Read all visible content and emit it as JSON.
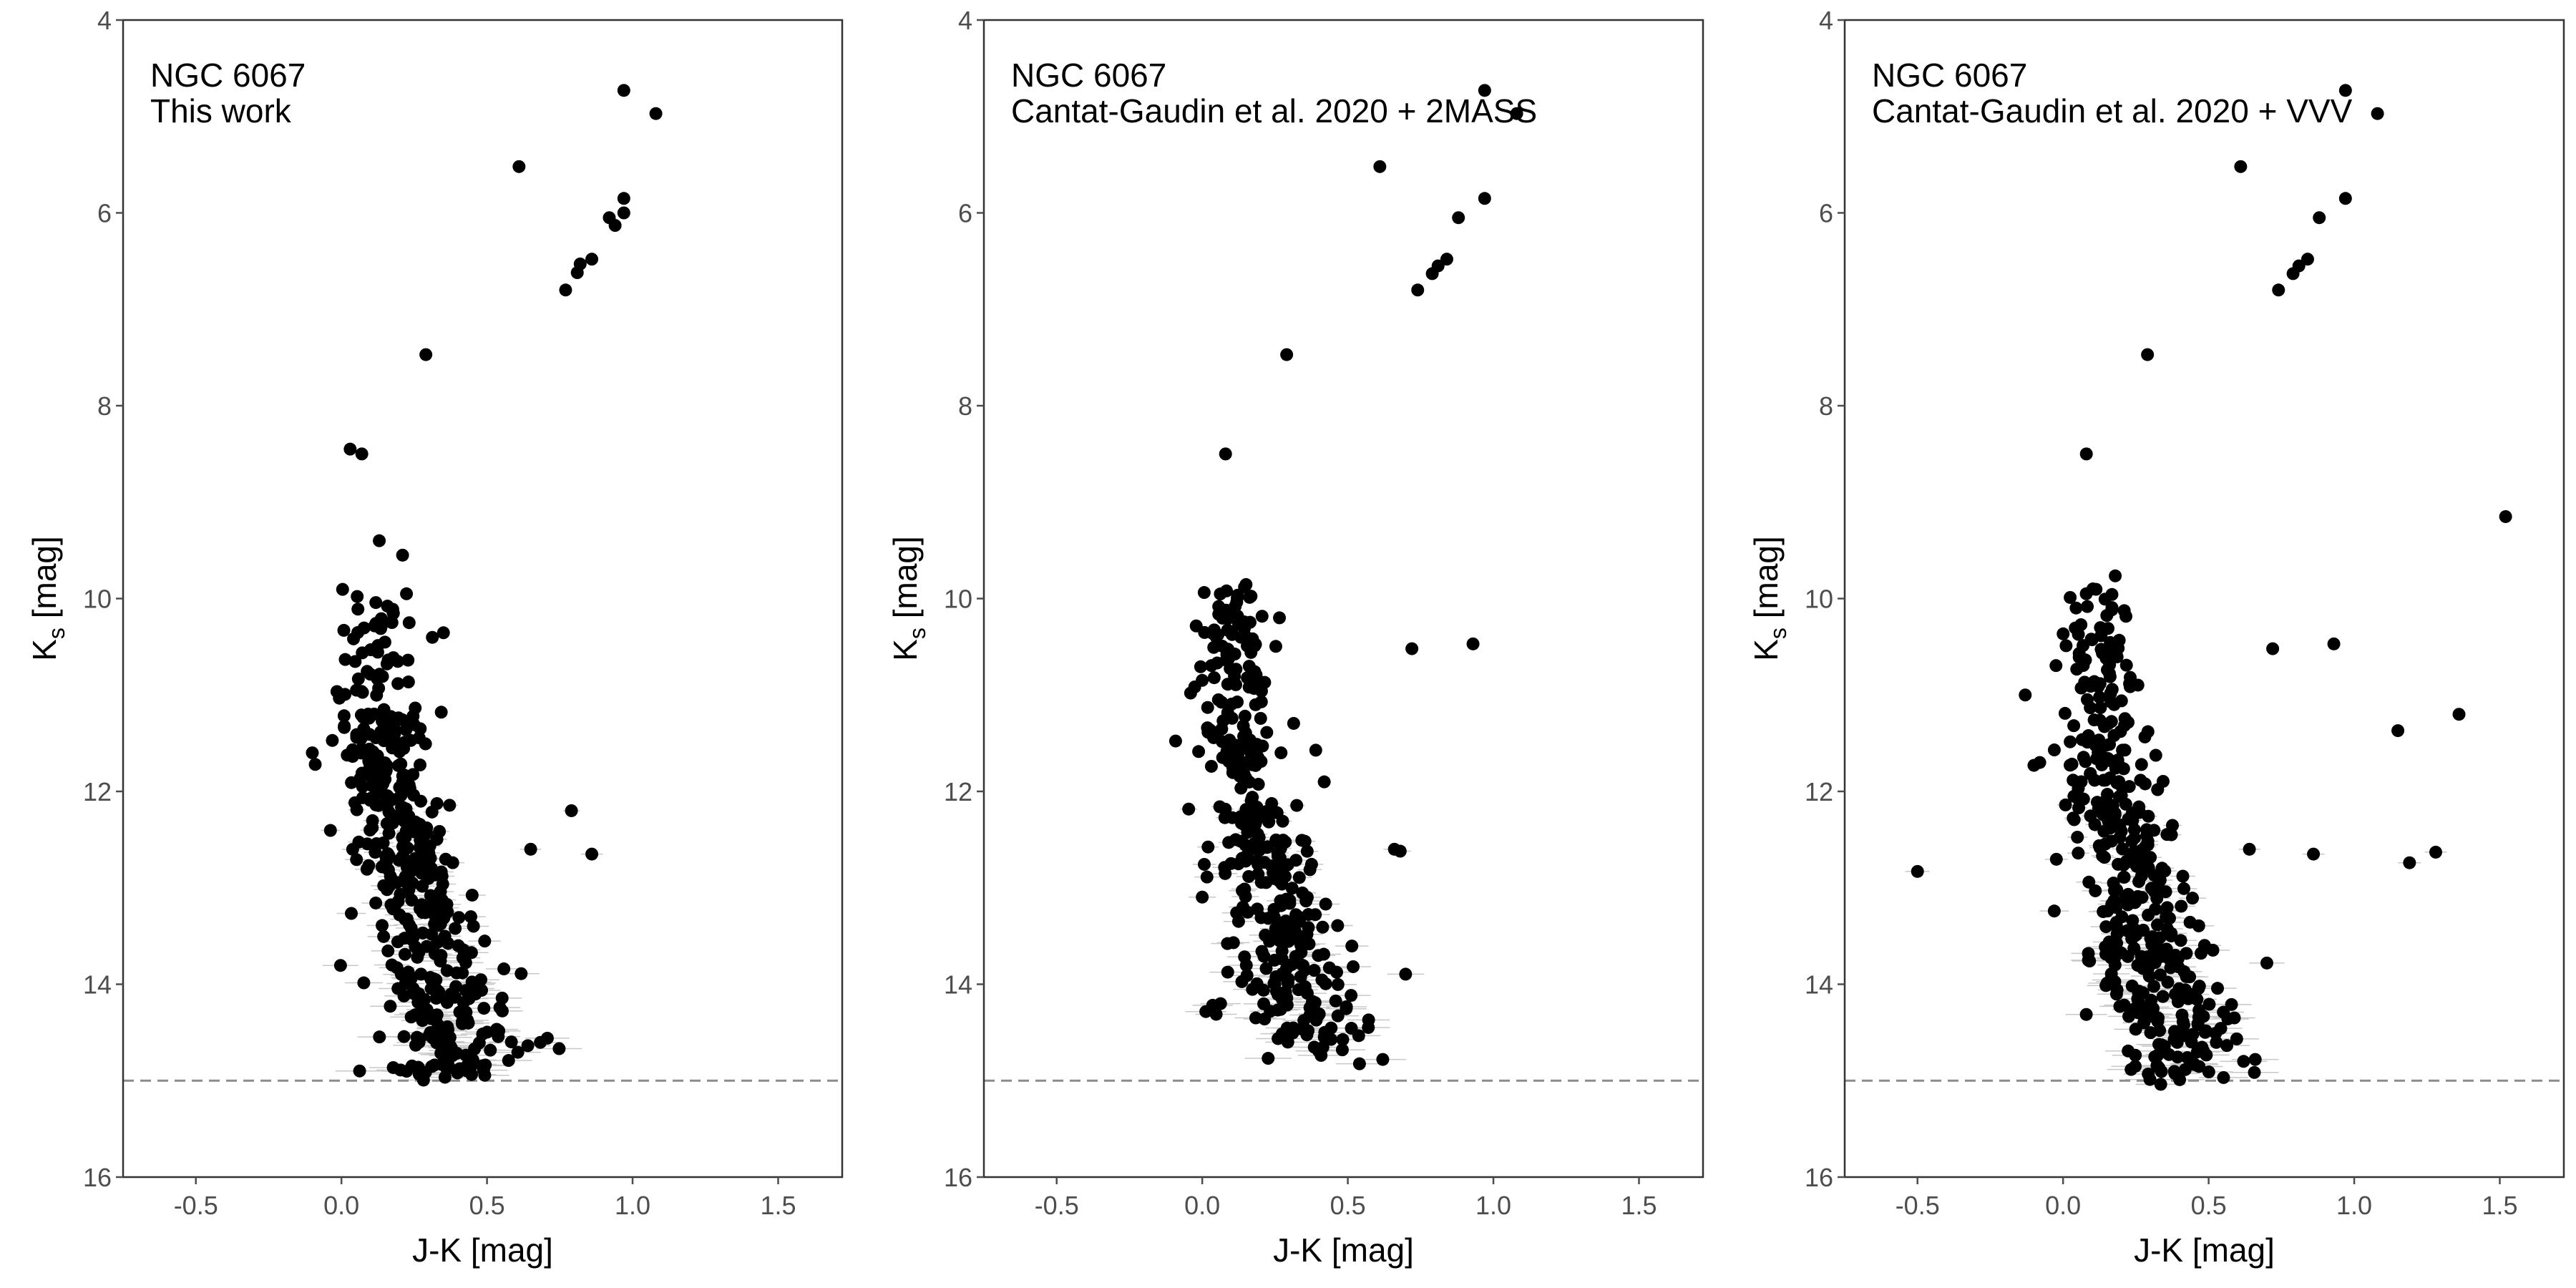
{
  "chart_data": [
    {
      "type": "scatter",
      "annotation": [
        "NGC 6067",
        "This work"
      ],
      "xlabel": "J-K [mag]",
      "ylabel": "Ks [mag]",
      "ylabel_main": "K",
      "ylabel_sub": "s",
      "ylabel_rest": " [mag]",
      "xlim": [
        -0.75,
        1.72
      ],
      "ylim": [
        16.0,
        4.0
      ],
      "y_inverted": true,
      "xticks": [
        "-0.5",
        "0.0",
        "0.5",
        "1.0",
        "1.5"
      ],
      "yticks": [
        "4",
        "6",
        "8",
        "10",
        "12",
        "14",
        "16"
      ],
      "hline": 15.0,
      "grid": false,
      "bright_stars": [
        [
          0.97,
          4.73
        ],
        [
          1.08,
          4.97
        ],
        [
          0.61,
          5.52
        ],
        [
          0.97,
          5.85
        ],
        [
          0.97,
          6.0
        ],
        [
          0.92,
          6.05
        ],
        [
          0.94,
          6.13
        ],
        [
          0.86,
          6.48
        ],
        [
          0.82,
          6.53
        ],
        [
          0.81,
          6.62
        ],
        [
          0.77,
          6.8
        ],
        [
          0.29,
          7.47
        ],
        [
          0.03,
          8.45
        ],
        [
          0.07,
          8.5
        ],
        [
          0.13,
          9.4
        ],
        [
          0.21,
          9.55
        ],
        [
          0.65,
          12.6
        ],
        [
          0.79,
          12.2
        ],
        [
          0.86,
          12.65
        ],
        [
          -0.1,
          11.6
        ],
        [
          -0.09,
          11.72
        ]
      ],
      "sequence": {
        "n": 470,
        "seed": 11,
        "k_min": 9.85,
        "k_max": 14.95,
        "scatter_pct": 0.06
      }
    },
    {
      "type": "scatter",
      "annotation": [
        "NGC 6067",
        "Cantat-Gaudin et al. 2020 + 2MASS"
      ],
      "xlabel": "J-K [mag]",
      "ylabel": "Ks [mag]",
      "ylabel_main": "K",
      "ylabel_sub": "s",
      "ylabel_rest": " [mag]",
      "xlim": [
        -0.75,
        1.72
      ],
      "ylim": [
        16.0,
        4.0
      ],
      "y_inverted": true,
      "xticks": [
        "-0.5",
        "0.0",
        "0.5",
        "1.0",
        "1.5"
      ],
      "yticks": [
        "4",
        "6",
        "8",
        "10",
        "12",
        "14",
        "16"
      ],
      "hline": 15.0,
      "grid": false,
      "bright_stars": [
        [
          0.97,
          4.73
        ],
        [
          1.08,
          4.97
        ],
        [
          0.61,
          5.52
        ],
        [
          0.97,
          5.85
        ],
        [
          0.88,
          6.05
        ],
        [
          0.84,
          6.48
        ],
        [
          0.81,
          6.55
        ],
        [
          0.79,
          6.63
        ],
        [
          0.74,
          6.8
        ],
        [
          0.29,
          7.47
        ],
        [
          0.08,
          8.5
        ],
        [
          0.72,
          10.52
        ],
        [
          0.93,
          10.47
        ],
        [
          0.66,
          12.6
        ],
        [
          0.68,
          12.62
        ],
        [
          0.62,
          14.78
        ],
        [
          -0.04,
          10.98
        ]
      ],
      "sequence": {
        "n": 380,
        "seed": 23,
        "k_min": 9.85,
        "k_max": 14.8,
        "scatter_pct": 0.06
      }
    },
    {
      "type": "scatter",
      "annotation": [
        "NGC 6067",
        "Cantat-Gaudin et al. 2020 + VVV"
      ],
      "xlabel": "J-K [mag]",
      "ylabel": "Ks [mag]",
      "ylabel_main": "K",
      "ylabel_sub": "s",
      "ylabel_rest": " [mag]",
      "xlim": [
        -0.75,
        1.72
      ],
      "ylim": [
        16.0,
        4.0
      ],
      "y_inverted": true,
      "xticks": [
        "-0.5",
        "0.0",
        "0.5",
        "1.0",
        "1.5"
      ],
      "yticks": [
        "4",
        "6",
        "8",
        "10",
        "12",
        "14",
        "16"
      ],
      "hline": 15.0,
      "grid": false,
      "bright_stars": [
        [
          0.97,
          4.73
        ],
        [
          1.08,
          4.97
        ],
        [
          0.61,
          5.52
        ],
        [
          0.97,
          5.85
        ],
        [
          0.88,
          6.05
        ],
        [
          0.84,
          6.48
        ],
        [
          0.81,
          6.55
        ],
        [
          0.79,
          6.63
        ],
        [
          0.74,
          6.8
        ],
        [
          0.29,
          7.47
        ],
        [
          0.08,
          8.5
        ],
        [
          1.52,
          9.15
        ],
        [
          0.72,
          10.52
        ],
        [
          0.93,
          10.47
        ],
        [
          1.36,
          11.2
        ],
        [
          1.15,
          11.37
        ],
        [
          0.64,
          12.6
        ],
        [
          0.86,
          12.65
        ],
        [
          1.19,
          12.74
        ],
        [
          1.28,
          12.63
        ],
        [
          -0.5,
          12.83
        ],
        [
          0.7,
          13.78
        ],
        [
          0.62,
          14.8
        ],
        [
          0.66,
          14.78
        ],
        [
          -0.1,
          11.73
        ],
        [
          -0.08,
          11.7
        ],
        [
          -0.03,
          11.57
        ],
        [
          -0.13,
          11.0
        ]
      ],
      "sequence": {
        "n": 420,
        "seed": 37,
        "k_min": 9.85,
        "k_max": 15.0,
        "scatter_pct": 0.06
      }
    }
  ],
  "colors": {
    "point": "#000000",
    "errorbar": "#c8c8c8",
    "hline": "#8c8c8c",
    "frame": "#333333",
    "tick": "#4d4d4d"
  }
}
